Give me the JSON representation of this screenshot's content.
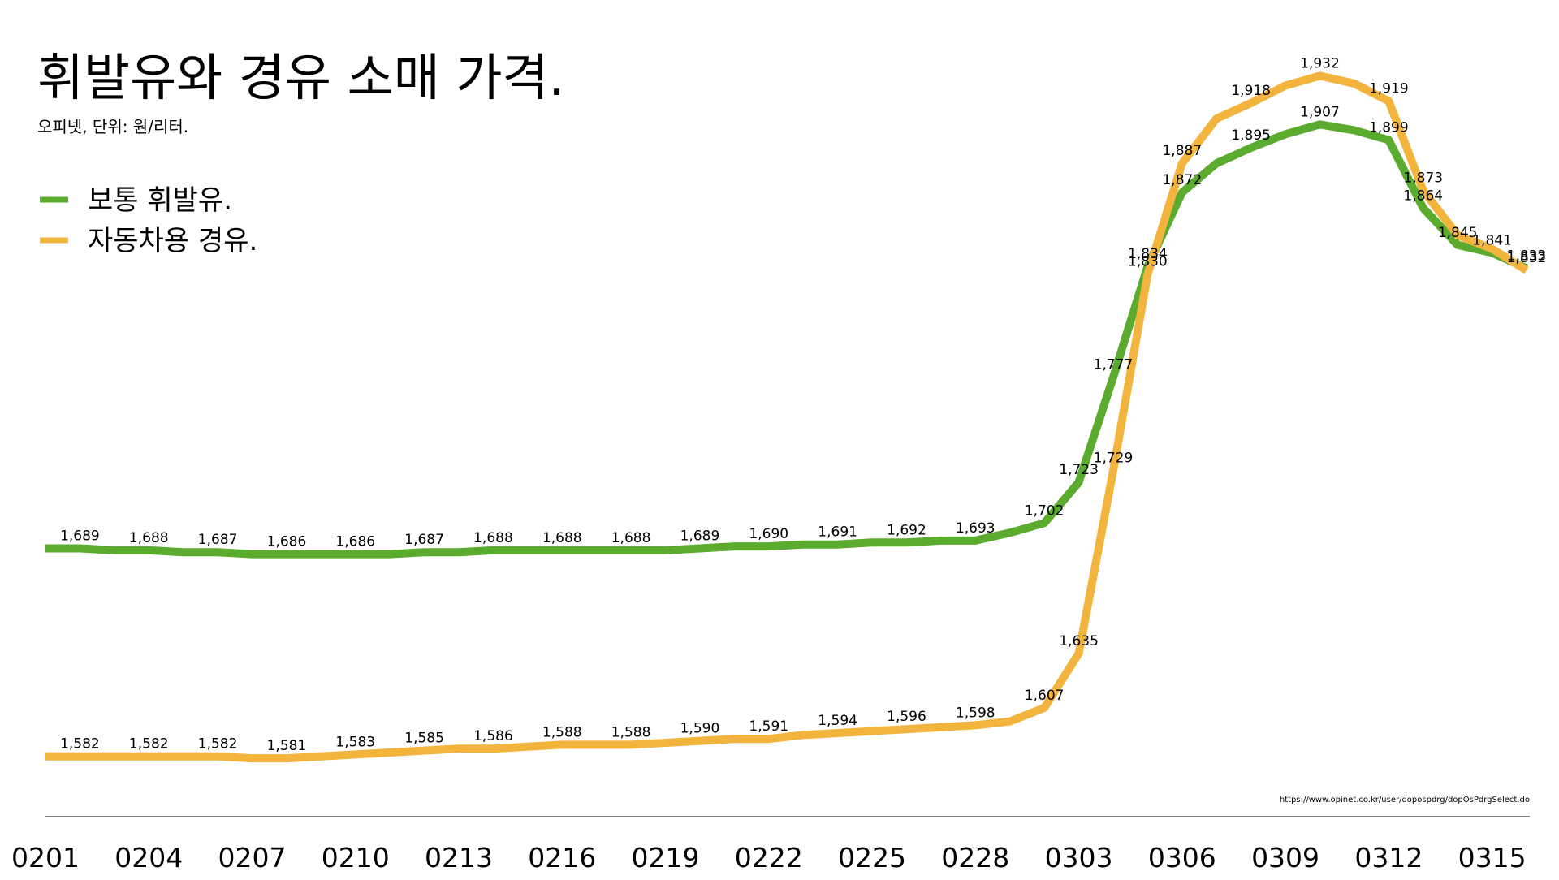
{
  "chart_data": {
    "type": "line",
    "title": "휘발유와 경유 소매 가격.",
    "subtitle": "오피넷, 단위: 원/리터.",
    "source": "https://www.opinet.co.kr/user/dopospdrg/dopOsPdrgSelect.do",
    "categories": [
      "0201",
      null,
      null,
      "0204",
      null,
      null,
      "0207",
      null,
      null,
      "0210",
      null,
      null,
      "0213",
      null,
      null,
      "0216",
      null,
      null,
      "0219",
      null,
      null,
      "0222",
      null,
      null,
      "0225",
      null,
      null,
      "0228",
      null,
      null,
      "0303",
      null,
      null,
      "0306",
      null,
      null,
      "0309",
      null,
      null,
      "0312",
      null,
      null,
      "0315",
      null
    ],
    "ylim": [
      1551,
      1971
    ],
    "legend": "top-left",
    "series": [
      {
        "name": "보통 휘발유.",
        "color": "#5aab2e",
        "values": [
          1689,
          1689,
          1688,
          1688,
          1687,
          1687,
          1686,
          1686,
          1686,
          1686,
          1686,
          1687,
          1687,
          1688,
          1688,
          1688,
          1688,
          1688,
          1688,
          1689,
          1690,
          1690,
          1691,
          1691,
          1692,
          1692,
          1693,
          1693,
          1697,
          1702,
          1723,
          1777,
          1834,
          1872,
          1887,
          1895,
          1902,
          1907,
          1904,
          1899,
          1864,
          1845,
          1841,
          1833
        ],
        "value_labels": [
          null,
          "1,689",
          null,
          "1,688",
          null,
          "1,687",
          null,
          "1,686",
          null,
          "1,686",
          null,
          "1,687",
          null,
          "1,688",
          null,
          "1,688",
          null,
          "1,688",
          null,
          "1,689",
          null,
          "1,690",
          null,
          "1,691",
          null,
          "1,692",
          null,
          "1,693",
          null,
          "1,702",
          "1,723",
          "1,777",
          "1,834",
          "1,872",
          null,
          "1,895",
          null,
          "1,907",
          null,
          "1,899",
          "1,864",
          "1,845",
          "1,841",
          "1,833"
        ]
      },
      {
        "name": "자동차용 경유.",
        "color": "#f2b43c",
        "values": [
          1582,
          1582,
          1582,
          1582,
          1582,
          1582,
          1581,
          1581,
          1582,
          1583,
          1584,
          1585,
          1586,
          1586,
          1587,
          1588,
          1588,
          1588,
          1589,
          1590,
          1591,
          1591,
          1593,
          1594,
          1595,
          1596,
          1597,
          1598,
          1600,
          1607,
          1635,
          1729,
          1830,
          1887,
          1910,
          1918,
          1927,
          1932,
          1928,
          1919,
          1873,
          1850,
          1843,
          1832
        ],
        "value_labels": [
          null,
          "1,582",
          null,
          "1,582",
          null,
          "1,582",
          null,
          "1,581",
          null,
          "1,583",
          null,
          "1,585",
          null,
          "1,586",
          null,
          "1,588",
          null,
          "1,588",
          null,
          "1,590",
          null,
          "1,591",
          null,
          "1,594",
          null,
          "1,596",
          null,
          "1,598",
          null,
          "1,607",
          "1,635",
          "1,729",
          "1,830",
          "1,887",
          null,
          "1,918",
          null,
          "1,932",
          null,
          "1,919",
          "1,873",
          null,
          null,
          "1,832"
        ]
      }
    ]
  }
}
